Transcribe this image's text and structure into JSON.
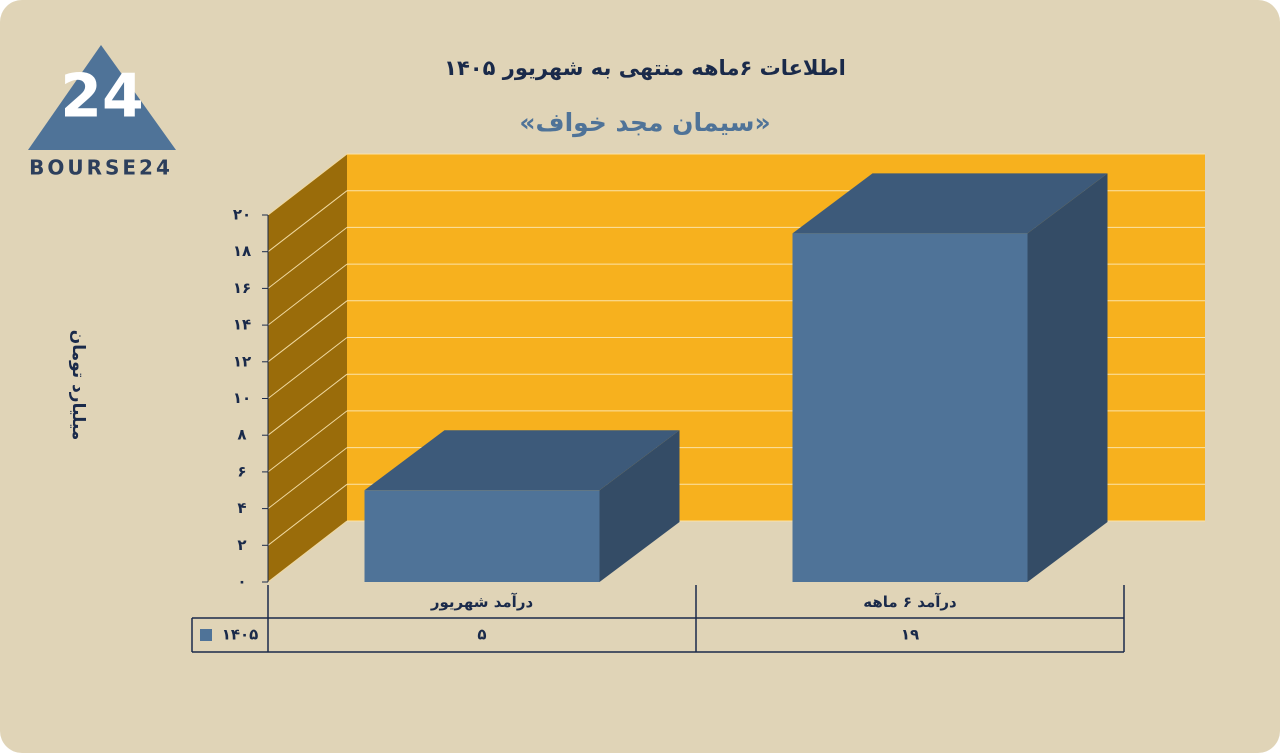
{
  "logo": {
    "mark": "24",
    "text": "BOURSE24"
  },
  "chart_data": {
    "type": "bar3d",
    "title": "اطلاعات ۶ماهه منتهی به شهریور ۱۴۰۵",
    "subtitle": "«سیمان مجد خواف»",
    "y_label": "میلیارد تومان",
    "categories": [
      "درآمد شهریور",
      "درآمد ۶ ماهه"
    ],
    "series": [
      {
        "name": "۱۴۰۵",
        "color": "#4f7398",
        "values": [
          5,
          19
        ],
        "value_labels": [
          "۵",
          "۱۹"
        ]
      }
    ],
    "ylim": [
      0,
      20
    ],
    "yticks": [
      {
        "value": 0,
        "label": "۰"
      },
      {
        "value": 2,
        "label": "۲"
      },
      {
        "value": 4,
        "label": "۴"
      },
      {
        "value": 6,
        "label": "۶"
      },
      {
        "value": 8,
        "label": "۸"
      },
      {
        "value": 10,
        "label": "۱۰"
      },
      {
        "value": 12,
        "label": "۱۲"
      },
      {
        "value": 14,
        "label": "۱۴"
      },
      {
        "value": 16,
        "label": "۱۶"
      },
      {
        "value": 18,
        "label": "۱۸"
      },
      {
        "value": 20,
        "label": "۲۰"
      }
    ],
    "grid": true,
    "wall_color": "#f7b11e"
  }
}
